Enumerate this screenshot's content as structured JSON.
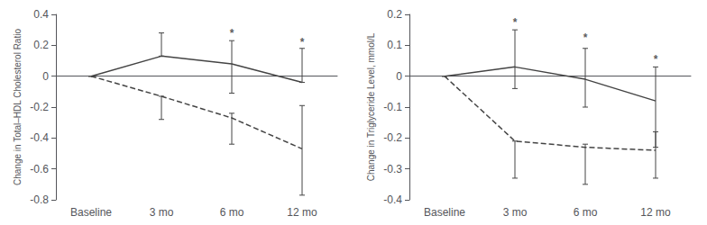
{
  "chart_data": [
    {
      "type": "line",
      "ylabel": "Change in Total–HDL Cholesterol Ratio",
      "categories": [
        "Baseline",
        "3 mo",
        "6 mo",
        "12 mo"
      ],
      "series": [
        {
          "line_style": "solid",
          "color": "#444444",
          "values": [
            0.0,
            0.13,
            0.08,
            -0.04
          ],
          "yerr_lo": [
            0.0,
            0.0,
            0.19,
            0.0
          ],
          "yerr_hi": [
            0.0,
            0.15,
            0.15,
            0.22
          ]
        },
        {
          "line_style": "dashed",
          "color": "#444444",
          "values": [
            0.0,
            -0.13,
            -0.27,
            -0.47
          ],
          "yerr_lo": [
            0.0,
            0.15,
            0.17,
            0.3
          ],
          "yerr_hi": [
            0.0,
            0.0,
            0.03,
            0.28
          ]
        }
      ],
      "annotations": [
        {
          "text": "*",
          "x": "6 mo",
          "y": 0.245
        },
        {
          "text": "*",
          "x": "12 mo",
          "y": 0.185
        }
      ],
      "ylim": [
        -0.8,
        0.4
      ],
      "yticks": [
        -0.8,
        -0.6,
        -0.4,
        -0.2,
        0,
        0.2,
        0.4
      ],
      "grid": false
    },
    {
      "type": "line",
      "ylabel": "Change in Triglyceride Level, mmol/L",
      "categories": [
        "Baseline",
        "3 mo",
        "6 mo",
        "12 mo"
      ],
      "series": [
        {
          "line_style": "solid",
          "color": "#444444",
          "values": [
            0.0,
            0.03,
            -0.01,
            -0.08
          ],
          "yerr_lo": [
            0.0,
            0.07,
            0.09,
            0.15
          ],
          "yerr_hi": [
            0.0,
            0.12,
            0.1,
            0.11
          ]
        },
        {
          "line_style": "dashed",
          "color": "#444444",
          "values": [
            0.0,
            -0.21,
            -0.23,
            -0.24
          ],
          "yerr_lo": [
            0.0,
            0.12,
            0.12,
            0.09
          ],
          "yerr_hi": [
            0.0,
            0.0,
            0.01,
            0.06
          ]
        }
      ],
      "annotations": [
        {
          "text": "*",
          "x": "3 mo",
          "y": 0.155
        },
        {
          "text": "*",
          "x": "6 mo",
          "y": 0.108
        },
        {
          "text": "*",
          "x": "12 mo",
          "y": 0.038
        }
      ],
      "ylim": [
        -0.4,
        0.2
      ],
      "yticks": [
        -0.4,
        -0.3,
        -0.2,
        -0.1,
        0,
        0.1,
        0.2
      ],
      "grid": false
    }
  ]
}
